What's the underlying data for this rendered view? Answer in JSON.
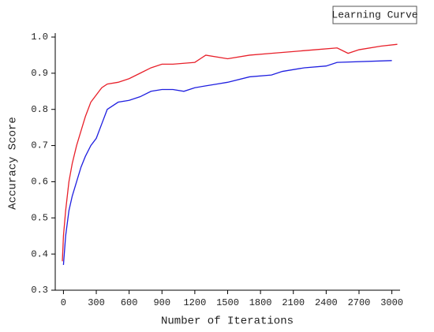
{
  "chart_data": {
    "type": "line",
    "title": "Learning Curve",
    "x_label": "Number of Iterations",
    "y_label": "Accuracy Score",
    "xlim": [
      -75,
      3075
    ],
    "xticks": [
      0,
      300,
      600,
      900,
      1200,
      1500,
      1800,
      2100,
      2400,
      2700,
      3000
    ],
    "ylim": [
      0.3,
      1.0
    ],
    "yticks": [
      0.3,
      0.4,
      0.5,
      0.6,
      0.7,
      0.8,
      0.9,
      {
        "value": 1,
        "label": "1.0"
      }
    ],
    "series": [
      {
        "color": "#e8202a",
        "x": [
          -10,
          0,
          20,
          50,
          80,
          120,
          160,
          200,
          250,
          300,
          350,
          400,
          500,
          600,
          700,
          800,
          900,
          1000,
          1200,
          1300,
          1500,
          1700,
          1900,
          2100,
          2300,
          2500,
          2600,
          2700,
          2900,
          3050
        ],
        "values": [
          0.38,
          0.45,
          0.52,
          0.6,
          0.65,
          0.7,
          0.74,
          0.78,
          0.82,
          0.84,
          0.86,
          0.87,
          0.875,
          0.885,
          0.9,
          0.915,
          0.925,
          0.925,
          0.93,
          0.95,
          0.94,
          0.95,
          0.955,
          0.96,
          0.965,
          0.97,
          0.955,
          0.965,
          0.975,
          0.98
        ]
      },
      {
        "color": "#1f1fe0",
        "x": [
          0,
          20,
          50,
          80,
          120,
          160,
          200,
          250,
          300,
          350,
          400,
          500,
          600,
          700,
          800,
          900,
          1000,
          1100,
          1200,
          1300,
          1400,
          1500,
          1700,
          1900,
          2000,
          2200,
          2400,
          2500,
          3000
        ],
        "values": [
          0.37,
          0.45,
          0.52,
          0.56,
          0.6,
          0.64,
          0.67,
          0.7,
          0.72,
          0.76,
          0.8,
          0.82,
          0.825,
          0.835,
          0.85,
          0.855,
          0.855,
          0.85,
          0.86,
          0.865,
          0.87,
          0.875,
          0.89,
          0.895,
          0.905,
          0.915,
          0.92,
          0.93,
          0.935
        ]
      }
    ]
  }
}
